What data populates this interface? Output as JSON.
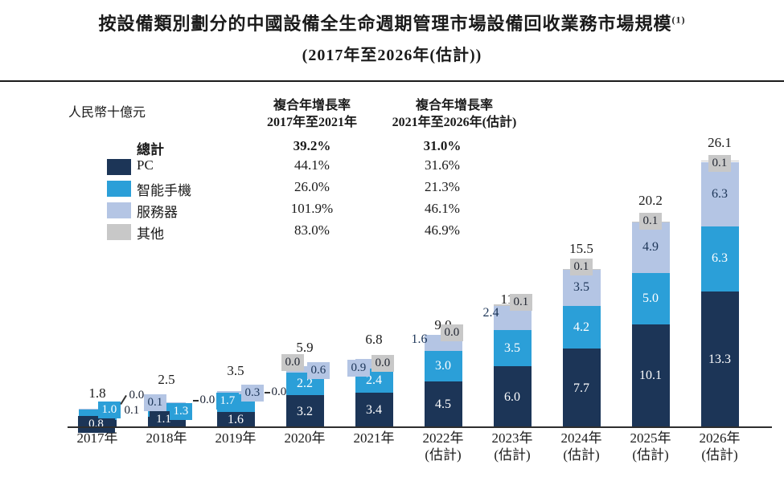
{
  "title": {
    "line1": "按設備類別劃分的中國設備全生命週期管理市場設備回收業務市場規模",
    "footnote_sup": "(1)",
    "line2": "(2017年至2026年(估計))"
  },
  "cagr_table": {
    "col1_header": [
      "複合年增長率",
      "2017年至2021年"
    ],
    "col2_header": [
      "複合年增長率",
      "2021年至2026年(估計)"
    ],
    "rows": [
      {
        "label": "總計",
        "bold": true,
        "col1": "39.2%",
        "col2": "31.0%"
      },
      {
        "label": "PC",
        "bold": false,
        "col1": "44.1%",
        "col2": "31.6%"
      },
      {
        "label": "智能手機",
        "bold": false,
        "col1": "26.0%",
        "col2": "21.3%"
      },
      {
        "label": "服務器",
        "bold": false,
        "col1": "101.9%",
        "col2": "46.1%"
      },
      {
        "label": "其他",
        "bold": false,
        "col1": "83.0%",
        "col2": "46.9%"
      }
    ]
  },
  "chart_data": {
    "type": "bar",
    "stacked": true,
    "ylabel": "人民幣十億元",
    "legend_position": "top-left",
    "grid": false,
    "categories": [
      {
        "line1": "2017年",
        "line2": ""
      },
      {
        "line1": "2018年",
        "line2": ""
      },
      {
        "line1": "2019年",
        "line2": ""
      },
      {
        "line1": "2020年",
        "line2": ""
      },
      {
        "line1": "2021年",
        "line2": ""
      },
      {
        "line1": "2022年",
        "line2": "(估計)"
      },
      {
        "line1": "2023年",
        "line2": "(估計)"
      },
      {
        "line1": "2024年",
        "line2": "(估計)"
      },
      {
        "line1": "2025年",
        "line2": "(估計)"
      },
      {
        "line1": "2026年",
        "line2": "(估計)"
      }
    ],
    "series": [
      {
        "name": "PC",
        "color": "#1c3557",
        "values": [
          0.8,
          1.1,
          1.6,
          3.2,
          3.4,
          4.5,
          6.0,
          7.7,
          10.1,
          13.3
        ]
      },
      {
        "name": "智能手機",
        "color": "#2b9fd8",
        "values": [
          1.0,
          1.3,
          1.7,
          2.2,
          2.4,
          3.0,
          3.5,
          4.2,
          5.0,
          6.3
        ]
      },
      {
        "name": "服務器",
        "color": "#b4c5e4",
        "values": [
          0.1,
          0.1,
          0.3,
          0.6,
          0.9,
          1.6,
          2.4,
          3.5,
          4.9,
          6.3
        ]
      },
      {
        "name": "其他",
        "color": "#c8c8c8",
        "values": [
          0.0,
          0.0,
          0.0,
          0.0,
          0.0,
          0.0,
          0.1,
          0.1,
          0.1,
          0.1
        ]
      }
    ],
    "totals": [
      1.8,
      2.5,
      3.5,
      5.9,
      6.8,
      9.0,
      11.9,
      15.5,
      20.2,
      26.1
    ]
  }
}
